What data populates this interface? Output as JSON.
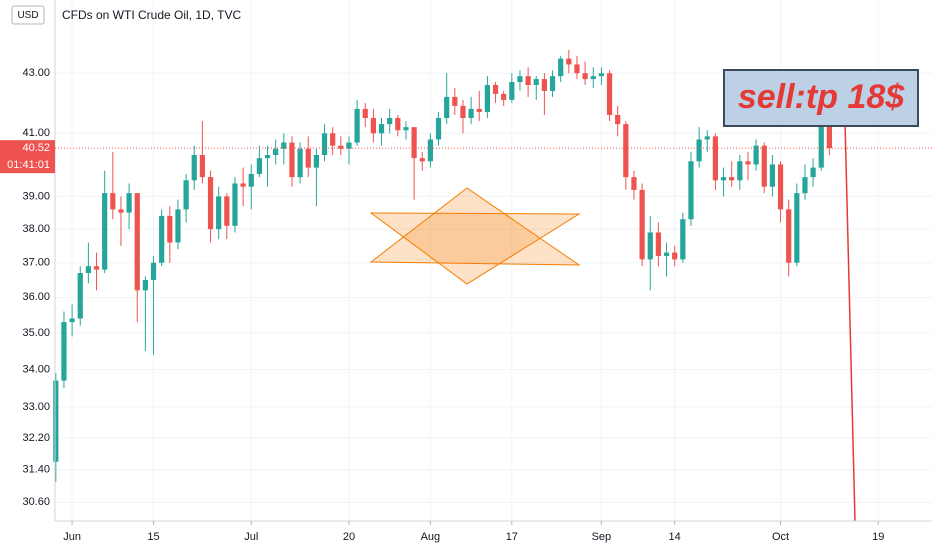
{
  "chart_data": {
    "type": "candlestick",
    "title": "CFDs on WTI Crude Oil, 1D, TVC",
    "currency": "USD",
    "annotation": "sell:tp 18$",
    "countdown": "01:41:01",
    "last_price": 40.52,
    "up_color": "#26a69a",
    "down_color": "#ef5350",
    "log_scale": true,
    "grid": true,
    "ylim": [
      30.15,
      45.57
    ],
    "yticks": [
      {
        "value": 43,
        "label": "43.00"
      },
      {
        "value": 41,
        "label": "41.00"
      },
      {
        "value": 39,
        "label": "39.00"
      },
      {
        "value": 38,
        "label": "38.00"
      },
      {
        "value": 37,
        "label": "37.00"
      },
      {
        "value": 36,
        "label": "36.00"
      },
      {
        "value": 35,
        "label": "35.00"
      },
      {
        "value": 34,
        "label": "34.00"
      },
      {
        "value": 33,
        "label": "33.00"
      },
      {
        "value": 32.2,
        "label": "32.20"
      },
      {
        "value": 31.4,
        "label": "31.40"
      },
      {
        "value": 30.6,
        "label": "30.60"
      }
    ],
    "xlim": [
      -0.1,
      107.6
    ],
    "xticks": [
      {
        "value": 2,
        "label": "Jun"
      },
      {
        "value": 12,
        "label": "15"
      },
      {
        "value": 24,
        "label": "Jul"
      },
      {
        "value": 36,
        "label": "20"
      },
      {
        "value": 46,
        "label": "Aug"
      },
      {
        "value": 56,
        "label": "17"
      },
      {
        "value": 67,
        "label": "Sep"
      },
      {
        "value": 76,
        "label": "14"
      },
      {
        "value": 89,
        "label": "Oct"
      },
      {
        "value": 101,
        "label": "19"
      }
    ],
    "ohlc": [
      [
        31.6,
        33.9,
        31.1,
        33.7
      ],
      [
        33.7,
        35.6,
        33.5,
        35.3
      ],
      [
        35.3,
        35.8,
        34.9,
        35.4
      ],
      [
        35.4,
        36.9,
        35.2,
        36.7
      ],
      [
        36.7,
        37.6,
        36.4,
        36.9
      ],
      [
        36.9,
        37.3,
        36.2,
        36.8
      ],
      [
        36.8,
        39.8,
        36.7,
        39.1
      ],
      [
        39.1,
        40.4,
        38.3,
        38.6
      ],
      [
        38.6,
        39.0,
        37.5,
        38.5
      ],
      [
        38.5,
        39.4,
        38.0,
        39.1
      ],
      [
        39.1,
        39.1,
        35.3,
        36.2
      ],
      [
        36.2,
        36.6,
        34.5,
        36.5
      ],
      [
        36.5,
        37.2,
        34.4,
        37.0
      ],
      [
        37.0,
        38.6,
        36.9,
        38.4
      ],
      [
        38.4,
        38.7,
        37.0,
        37.6
      ],
      [
        37.6,
        38.9,
        37.4,
        38.6
      ],
      [
        38.6,
        39.7,
        38.2,
        39.5
      ],
      [
        39.5,
        40.6,
        39.2,
        40.3
      ],
      [
        40.3,
        41.4,
        39.4,
        39.6
      ],
      [
        39.6,
        39.8,
        37.6,
        38.0
      ],
      [
        38.0,
        39.3,
        37.7,
        39.0
      ],
      [
        39.0,
        39.1,
        37.7,
        38.1
      ],
      [
        38.1,
        39.6,
        37.9,
        39.4
      ],
      [
        39.4,
        39.9,
        38.7,
        39.3
      ],
      [
        39.3,
        40.0,
        38.6,
        39.7
      ],
      [
        39.7,
        40.6,
        39.6,
        40.2
      ],
      [
        40.2,
        40.6,
        39.3,
        40.3
      ],
      [
        40.3,
        40.8,
        40.0,
        40.5
      ],
      [
        40.5,
        41.0,
        40.0,
        40.7
      ],
      [
        40.7,
        40.9,
        39.3,
        39.6
      ],
      [
        39.6,
        40.7,
        39.4,
        40.5
      ],
      [
        40.5,
        40.9,
        39.6,
        39.9
      ],
      [
        39.9,
        40.5,
        38.7,
        40.3
      ],
      [
        40.3,
        41.3,
        40.1,
        41.0
      ],
      [
        41.0,
        41.2,
        40.3,
        40.6
      ],
      [
        40.6,
        40.9,
        40.3,
        40.5
      ],
      [
        40.5,
        40.9,
        40.0,
        40.7
      ],
      [
        40.7,
        42.1,
        40.6,
        41.8
      ],
      [
        41.8,
        42.0,
        41.2,
        41.5
      ],
      [
        41.5,
        41.8,
        40.7,
        41.0
      ],
      [
        41.0,
        41.5,
        40.6,
        41.3
      ],
      [
        41.3,
        41.8,
        41.0,
        41.5
      ],
      [
        41.5,
        41.6,
        40.9,
        41.1
      ],
      [
        41.1,
        41.4,
        40.8,
        41.2
      ],
      [
        41.2,
        41.2,
        38.9,
        40.2
      ],
      [
        40.2,
        40.4,
        39.8,
        40.1
      ],
      [
        40.1,
        41.0,
        39.9,
        40.8
      ],
      [
        40.8,
        41.7,
        40.6,
        41.5
      ],
      [
        41.5,
        43.0,
        41.3,
        42.2
      ],
      [
        42.2,
        42.5,
        41.6,
        41.9
      ],
      [
        41.9,
        42.1,
        41.0,
        41.5
      ],
      [
        41.5,
        42.2,
        41.3,
        41.8
      ],
      [
        41.8,
        42.4,
        41.4,
        41.7
      ],
      [
        41.7,
        42.9,
        41.5,
        42.6
      ],
      [
        42.6,
        42.7,
        42.0,
        42.3
      ],
      [
        42.3,
        42.4,
        41.9,
        42.1
      ],
      [
        42.1,
        43.0,
        42.0,
        42.7
      ],
      [
        42.7,
        43.1,
        42.4,
        42.9
      ],
      [
        42.9,
        43.2,
        42.2,
        42.6
      ],
      [
        42.6,
        42.9,
        42.1,
        42.8
      ],
      [
        42.8,
        43.0,
        41.6,
        42.4
      ],
      [
        42.4,
        43.1,
        42.2,
        42.9
      ],
      [
        42.9,
        43.6,
        42.7,
        43.5
      ],
      [
        43.5,
        43.8,
        43.0,
        43.3
      ],
      [
        43.3,
        43.6,
        42.8,
        43.0
      ],
      [
        43.0,
        43.4,
        42.6,
        42.8
      ],
      [
        42.8,
        43.2,
        42.5,
        42.9
      ],
      [
        42.9,
        43.2,
        42.6,
        43.0
      ],
      [
        43.0,
        43.1,
        41.4,
        41.6
      ],
      [
        41.6,
        41.9,
        40.9,
        41.3
      ],
      [
        41.3,
        41.4,
        39.2,
        39.6
      ],
      [
        39.6,
        39.8,
        38.9,
        39.2
      ],
      [
        39.2,
        39.4,
        36.9,
        37.1
      ],
      [
        37.1,
        38.4,
        36.2,
        37.9
      ],
      [
        37.9,
        38.2,
        36.9,
        37.2
      ],
      [
        37.2,
        37.6,
        36.6,
        37.3
      ],
      [
        37.3,
        37.5,
        36.9,
        37.1
      ],
      [
        37.1,
        38.5,
        37.0,
        38.3
      ],
      [
        38.3,
        40.4,
        38.1,
        40.1
      ],
      [
        40.1,
        41.2,
        39.9,
        40.8
      ],
      [
        40.8,
        41.1,
        40.4,
        40.9
      ],
      [
        40.9,
        41.0,
        39.2,
        39.5
      ],
      [
        39.5,
        39.9,
        39.0,
        39.6
      ],
      [
        39.6,
        40.1,
        39.3,
        39.5
      ],
      [
        39.5,
        40.3,
        39.2,
        40.1
      ],
      [
        40.1,
        40.4,
        39.5,
        40.0
      ],
      [
        40.0,
        40.8,
        39.8,
        40.6
      ],
      [
        40.6,
        40.7,
        39.1,
        39.3
      ],
      [
        39.3,
        40.3,
        39.0,
        40.0
      ],
      [
        40.0,
        40.1,
        38.2,
        38.6
      ],
      [
        38.6,
        38.9,
        36.6,
        37.0
      ],
      [
        37.0,
        39.4,
        36.9,
        39.1
      ],
      [
        39.1,
        40.0,
        38.9,
        39.6
      ],
      [
        39.6,
        40.2,
        39.3,
        39.9
      ],
      [
        39.9,
        41.6,
        39.8,
        41.4
      ],
      [
        41.4,
        41.6,
        40.3,
        40.52
      ]
    ]
  }
}
